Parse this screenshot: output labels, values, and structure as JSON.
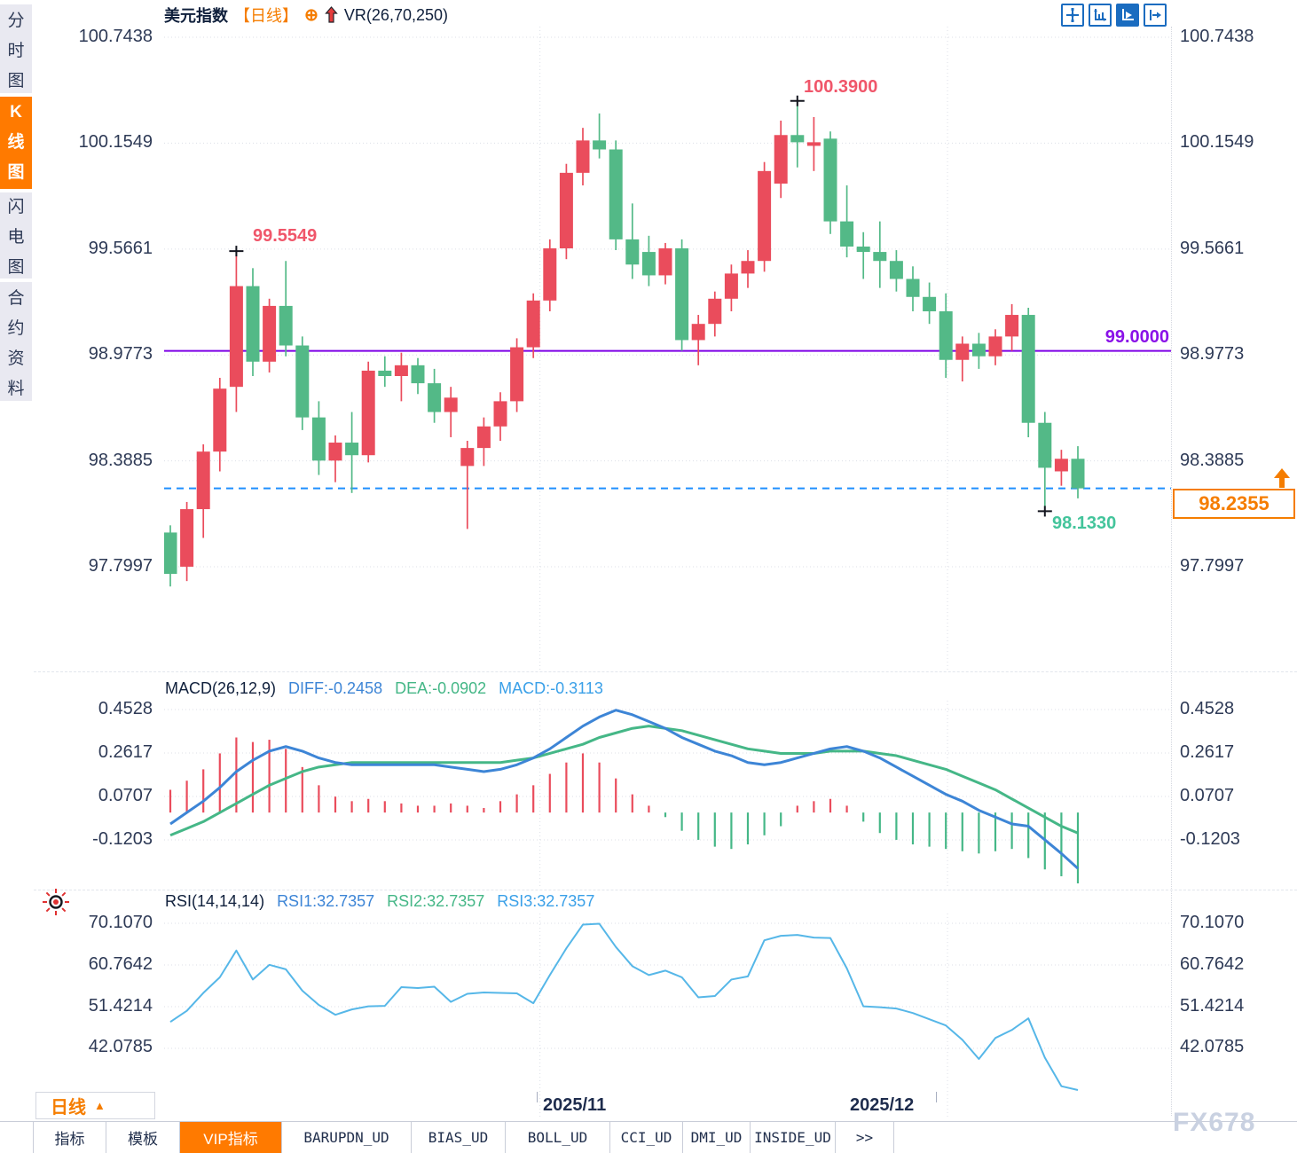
{
  "app": {
    "watermark": "FX678"
  },
  "sidebar": {
    "tabs": [
      {
        "label": "分时图",
        "active": false
      },
      {
        "label": "K线图",
        "active": true
      },
      {
        "label": "闪电图",
        "active": false
      },
      {
        "label": "合约资料",
        "active": false
      }
    ]
  },
  "header": {
    "symbol": "美元指数",
    "period": "【日线】",
    "indicator": "VR(26,70,250)"
  },
  "toolbar": {
    "icons": [
      "pan-mode",
      "scale-both-axes",
      "auto-scale",
      "goto-latest"
    ]
  },
  "price_axis": {
    "labels": [
      "100.7438",
      "100.1549",
      "99.5661",
      "98.9773",
      "98.3885",
      "97.7997"
    ]
  },
  "time_axis": {
    "labels": [
      "2025/11",
      "2025/12"
    ]
  },
  "annotations": {
    "swing_high_1": "99.5549",
    "swing_high_2": "100.3900",
    "swing_low": "98.1330",
    "hline_label": "99.0000",
    "last_price": "98.2355"
  },
  "macd_panel": {
    "title": "MACD(26,12,9)",
    "diff": "DIFF:-0.2458",
    "dea": "DEA:-0.0902",
    "macd": "MACD:-0.3113",
    "labels": [
      "0.4528",
      "0.2617",
      "0.0707",
      "-0.1203"
    ]
  },
  "rsi_panel": {
    "title": "RSI(14,14,14)",
    "rsi1": "RSI1:32.7357",
    "rsi2": "RSI2:32.7357",
    "rsi3": "RSI3:32.7357",
    "labels": [
      "70.1070",
      "60.7642",
      "51.4214",
      "42.0785"
    ]
  },
  "bottom": {
    "period_selector": "日线",
    "tabs": [
      {
        "label": "指标",
        "active": false
      },
      {
        "label": "模板",
        "active": false
      },
      {
        "label": "VIP指标",
        "active": true
      },
      {
        "label": "BARUPDN_UD",
        "active": false
      },
      {
        "label": "BIAS_UD",
        "active": false
      },
      {
        "label": "BOLL_UD",
        "active": false
      },
      {
        "label": "CCI_UD",
        "active": false
      },
      {
        "label": "DMI_UD",
        "active": false
      },
      {
        "label": "INSIDE_UD",
        "active": false
      },
      {
        "label": ">>",
        "active": false
      }
    ]
  },
  "colors": {
    "up": "#ea4c5c",
    "down": "#53b987",
    "purple_line": "#7d00e6",
    "dashed_line": "#1e8fff",
    "accent_orange": "#f57d00",
    "diff_blue": "#3d85d6",
    "dea_green": "#45b787",
    "macd_blue": "#3aa0e8",
    "rsi_line": "#56b7e8",
    "grid": "#dcdfe7",
    "marker": "#14161f"
  },
  "chart_data": {
    "type": "candlestick",
    "title": "美元指数 日线",
    "price_ticks": [
      100.7438,
      100.1549,
      99.5661,
      98.9773,
      98.3885,
      97.7997
    ],
    "x_tick_labels": [
      "2025/11",
      "2025/12"
    ],
    "x_tick_candle_index": [
      22.4,
      47.1
    ],
    "horizontal_line": 99.0,
    "last_price": 98.2355,
    "marked_points": {
      "high1": {
        "index": 4,
        "price": 99.5549
      },
      "high2": {
        "index": 38,
        "price": 100.39
      },
      "low": {
        "index": 53,
        "price": 98.133
      }
    },
    "candles": [
      [
        97.99,
        98.03,
        97.69,
        97.76
      ],
      [
        97.8,
        98.16,
        97.72,
        98.12
      ],
      [
        98.12,
        98.48,
        97.96,
        98.44
      ],
      [
        98.44,
        98.85,
        98.33,
        98.79
      ],
      [
        98.8,
        99.5549,
        98.66,
        99.36
      ],
      [
        99.36,
        99.46,
        98.86,
        98.94
      ],
      [
        98.94,
        99.29,
        98.88,
        99.25
      ],
      [
        99.25,
        99.5,
        98.97,
        99.03
      ],
      [
        99.03,
        99.08,
        98.56,
        98.63
      ],
      [
        98.63,
        98.72,
        98.31,
        98.39
      ],
      [
        98.39,
        98.53,
        98.27,
        98.49
      ],
      [
        98.49,
        98.66,
        98.21,
        98.42
      ],
      [
        98.42,
        98.94,
        98.38,
        98.89
      ],
      [
        98.89,
        98.97,
        98.8,
        98.86
      ],
      [
        98.86,
        98.99,
        98.72,
        98.92
      ],
      [
        98.92,
        98.96,
        98.76,
        98.82
      ],
      [
        98.82,
        98.9,
        98.6,
        98.66
      ],
      [
        98.66,
        98.8,
        98.52,
        98.74
      ],
      [
        98.36,
        98.5,
        98.01,
        98.46
      ],
      [
        98.46,
        98.63,
        98.36,
        98.58
      ],
      [
        98.58,
        98.77,
        98.5,
        98.72
      ],
      [
        98.72,
        99.07,
        98.66,
        99.02
      ],
      [
        99.02,
        99.32,
        98.96,
        99.28
      ],
      [
        99.28,
        99.62,
        99.22,
        99.57
      ],
      [
        99.57,
        100.04,
        99.51,
        99.99
      ],
      [
        99.99,
        100.24,
        99.92,
        100.17
      ],
      [
        100.17,
        100.32,
        100.07,
        100.12
      ],
      [
        100.12,
        100.17,
        99.56,
        99.62
      ],
      [
        99.62,
        99.82,
        99.4,
        99.48
      ],
      [
        99.55,
        99.64,
        99.36,
        99.42
      ],
      [
        99.42,
        99.6,
        99.37,
        99.57
      ],
      [
        99.57,
        99.62,
        99.0,
        99.06
      ],
      [
        99.06,
        99.2,
        98.92,
        99.15
      ],
      [
        99.15,
        99.33,
        99.08,
        99.29
      ],
      [
        99.29,
        99.48,
        99.22,
        99.43
      ],
      [
        99.43,
        99.56,
        99.35,
        99.5
      ],
      [
        99.5,
        100.05,
        99.44,
        100.0
      ],
      [
        99.93,
        100.28,
        99.85,
        100.2
      ],
      [
        100.2,
        100.39,
        100.02,
        100.16
      ],
      [
        100.14,
        100.3,
        100.0,
        100.16
      ],
      [
        100.18,
        100.22,
        99.65,
        99.72
      ],
      [
        99.72,
        99.92,
        99.52,
        99.58
      ],
      [
        99.58,
        99.66,
        99.4,
        99.55
      ],
      [
        99.55,
        99.72,
        99.35,
        99.5
      ],
      [
        99.5,
        99.56,
        99.33,
        99.4
      ],
      [
        99.4,
        99.47,
        99.22,
        99.3
      ],
      [
        99.3,
        99.38,
        99.15,
        99.22
      ],
      [
        99.22,
        99.32,
        98.85,
        98.95
      ],
      [
        98.95,
        99.08,
        98.83,
        99.04
      ],
      [
        99.04,
        99.1,
        98.9,
        98.97
      ],
      [
        98.97,
        99.12,
        98.92,
        99.08
      ],
      [
        99.08,
        99.26,
        99.0,
        99.2
      ],
      [
        99.2,
        99.24,
        98.52,
        98.6
      ],
      [
        98.6,
        98.66,
        98.133,
        98.35
      ],
      [
        98.33,
        98.45,
        98.25,
        98.4
      ],
      [
        98.4,
        98.47,
        98.18,
        98.2355
      ]
    ],
    "macd": {
      "params": "26,12,9",
      "ticks": [
        0.4528,
        0.2617,
        0.0707,
        -0.1203
      ],
      "diff_last": -0.2458,
      "dea_last": -0.0902,
      "macd_last": -0.3113,
      "histogram": [
        0.1,
        0.14,
        0.19,
        0.26,
        0.33,
        0.31,
        0.32,
        0.28,
        0.2,
        0.12,
        0.07,
        0.05,
        0.06,
        0.05,
        0.04,
        0.03,
        0.03,
        0.04,
        0.03,
        0.02,
        0.05,
        0.08,
        0.12,
        0.17,
        0.22,
        0.26,
        0.22,
        0.15,
        0.08,
        0.03,
        -0.02,
        -0.08,
        -0.12,
        -0.15,
        -0.16,
        -0.14,
        -0.1,
        -0.06,
        0.03,
        0.05,
        0.06,
        0.03,
        -0.04,
        -0.09,
        -0.12,
        -0.14,
        -0.15,
        -0.16,
        -0.17,
        -0.18,
        -0.17,
        -0.16,
        -0.2,
        -0.25,
        -0.28,
        -0.3113
      ],
      "diff": [
        -0.05,
        0.0,
        0.05,
        0.11,
        0.18,
        0.23,
        0.27,
        0.29,
        0.27,
        0.24,
        0.22,
        0.21,
        0.21,
        0.21,
        0.21,
        0.21,
        0.21,
        0.2,
        0.19,
        0.18,
        0.19,
        0.21,
        0.24,
        0.28,
        0.33,
        0.38,
        0.42,
        0.45,
        0.43,
        0.4,
        0.37,
        0.33,
        0.3,
        0.27,
        0.25,
        0.22,
        0.21,
        0.22,
        0.24,
        0.26,
        0.28,
        0.29,
        0.27,
        0.24,
        0.2,
        0.16,
        0.12,
        0.08,
        0.05,
        0.01,
        -0.02,
        -0.05,
        -0.06,
        -0.12,
        -0.18,
        -0.2458
      ],
      "dea": [
        -0.1,
        -0.07,
        -0.04,
        0.0,
        0.04,
        0.08,
        0.12,
        0.15,
        0.18,
        0.2,
        0.21,
        0.22,
        0.22,
        0.22,
        0.22,
        0.22,
        0.22,
        0.22,
        0.22,
        0.22,
        0.22,
        0.23,
        0.24,
        0.26,
        0.28,
        0.3,
        0.33,
        0.35,
        0.37,
        0.38,
        0.37,
        0.36,
        0.34,
        0.32,
        0.3,
        0.28,
        0.27,
        0.26,
        0.26,
        0.26,
        0.27,
        0.27,
        0.27,
        0.26,
        0.25,
        0.23,
        0.21,
        0.19,
        0.16,
        0.13,
        0.1,
        0.06,
        0.02,
        -0.02,
        -0.06,
        -0.0902
      ]
    },
    "rsi": {
      "params": "14,14,14",
      "ticks": [
        70.107,
        60.7642,
        51.4214,
        42.0785
      ],
      "last": 32.7357,
      "values": [
        48.0,
        50.5,
        54.5,
        58.0,
        64.0,
        57.5,
        60.8,
        59.8,
        55.0,
        51.8,
        49.6,
        50.8,
        51.5,
        51.6,
        55.8,
        55.6,
        55.9,
        52.5,
        54.3,
        54.6,
        54.5,
        54.4,
        52.2,
        58.5,
        64.5,
        69.8,
        70.0,
        64.8,
        60.5,
        58.5,
        59.5,
        58.0,
        53.5,
        53.8,
        57.5,
        58.2,
        66.3,
        67.3,
        67.5,
        66.9,
        66.8,
        60.0,
        51.5,
        51.3,
        51.0,
        50.0,
        48.6,
        47.2,
        44.0,
        39.7,
        44.4,
        46.2,
        48.8,
        40.0,
        33.6,
        32.7357
      ]
    }
  }
}
